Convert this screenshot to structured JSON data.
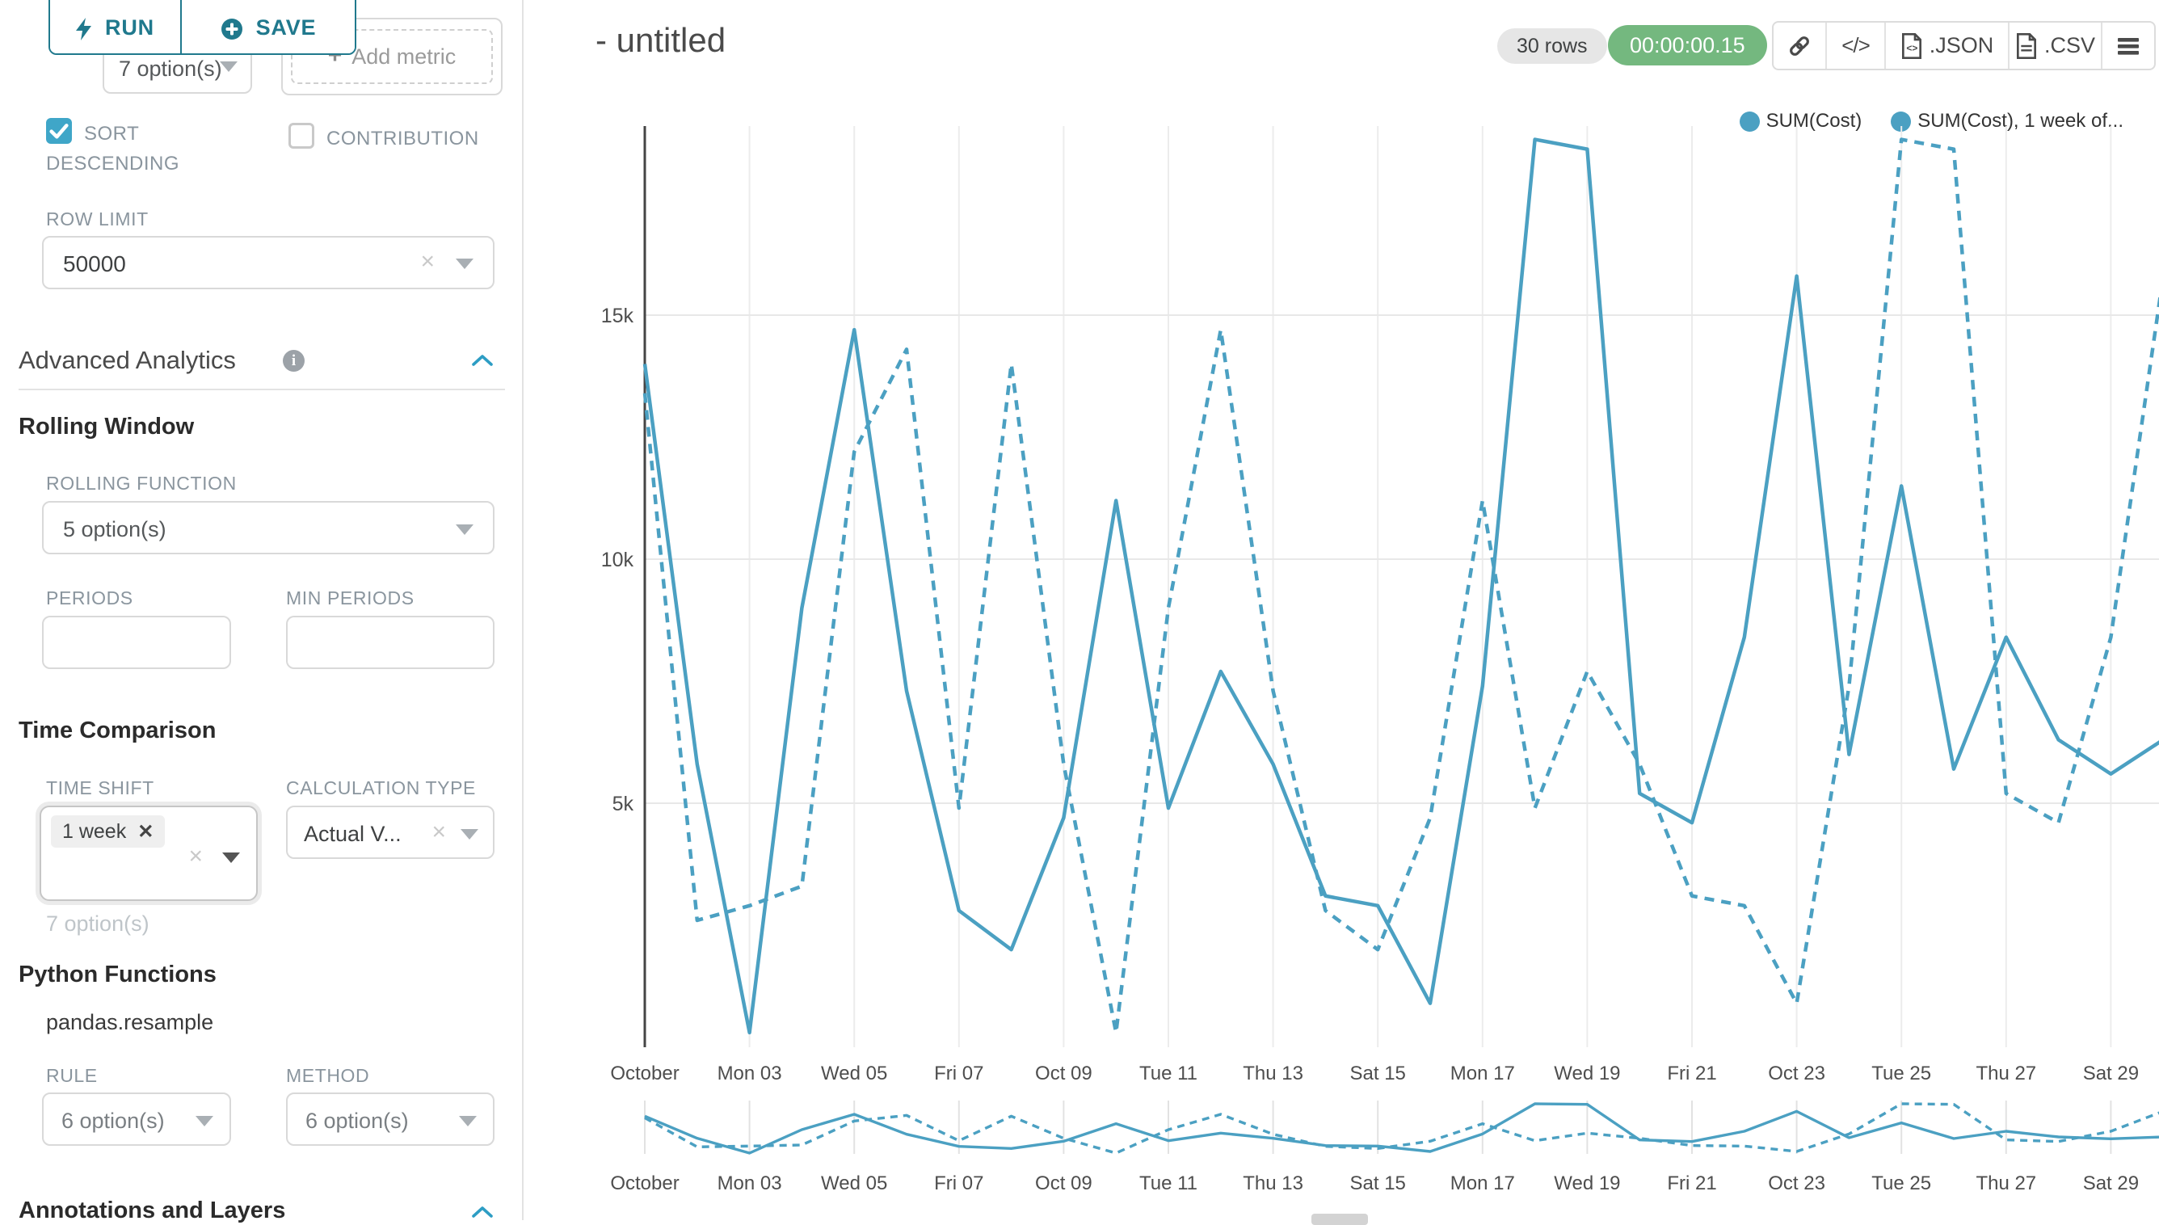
{
  "toolbar": {
    "run_label": "RUN",
    "save_label": "SAVE"
  },
  "query_controls": {
    "series_limit_value": "7 option(s)",
    "add_metric_label": "Add metric",
    "sort_word1": "SORT",
    "sort_word2": "DESCENDING",
    "contribution_label": "CONTRIBUTION",
    "row_limit_label": "ROW LIMIT",
    "row_limit_value": "50000"
  },
  "advanced_analytics": {
    "title": "Advanced Analytics",
    "rolling_window_title": "Rolling Window",
    "rolling_function_label": "ROLLING FUNCTION",
    "rolling_function_value": "5 option(s)",
    "periods_label": "PERIODS",
    "min_periods_label": "MIN PERIODS",
    "time_comparison_title": "Time Comparison",
    "time_shift_label": "TIME SHIFT",
    "time_shift_tag": "1 week",
    "time_shift_helper": "7 option(s)",
    "calculation_type_label": "CALCULATION TYPE",
    "calculation_type_value": "Actual V...",
    "python_functions_title": "Python Functions",
    "pandas_resample_label": "pandas.resample",
    "rule_label": "RULE",
    "rule_value": "6 option(s)",
    "method_label": "METHOD",
    "method_value": "6 option(s)",
    "annotations_title": "Annotations and Layers"
  },
  "header": {
    "title": "- untitled",
    "rows_badge": "30 rows",
    "timer": "00:00:00.15",
    "json_label": ".JSON",
    "csv_label": ".CSV",
    "code_glyph": "</>"
  },
  "legend": [
    {
      "label": "SUM(Cost)"
    },
    {
      "label": "SUM(Cost), 1 week of..."
    }
  ],
  "chart_data": {
    "type": "line",
    "title": "- untitled",
    "x": [
      "Oct 01",
      "Oct 02",
      "Oct 03",
      "Oct 04",
      "Oct 05",
      "Oct 06",
      "Oct 07",
      "Oct 08",
      "Oct 09",
      "Oct 10",
      "Oct 11",
      "Oct 12",
      "Oct 13",
      "Oct 14",
      "Oct 15",
      "Oct 16",
      "Oct 17",
      "Oct 18",
      "Oct 19",
      "Oct 20",
      "Oct 21",
      "Oct 22",
      "Oct 23",
      "Oct 24",
      "Oct 25",
      "Oct 26",
      "Oct 27",
      "Oct 28",
      "Oct 29",
      "Oct 30"
    ],
    "x_tick_labels": [
      "October",
      "Mon 03",
      "Wed 05",
      "Fri 07",
      "Oct 09",
      "Tue 11",
      "Thu 13",
      "Sat 15",
      "Mon 17",
      "Wed 19",
      "Fri 21",
      "Oct 23",
      "Tue 25",
      "Thu 27",
      "Sat 29"
    ],
    "y_ticks": [
      {
        "value": 5000,
        "label": "5k"
      },
      {
        "value": 10000,
        "label": "10k"
      },
      {
        "value": 15000,
        "label": "15k"
      }
    ],
    "ylim": [
      0,
      18900
    ],
    "grid": true,
    "legend_position": "top-right",
    "series": [
      {
        "name": "SUM(Cost)",
        "style": "solid",
        "values": [
          14000,
          5800,
          300,
          9000,
          14700,
          7300,
          2800,
          2000,
          4700,
          11200,
          4900,
          7700,
          5800,
          3100,
          2900,
          900,
          7400,
          18600,
          18400,
          5200,
          4600,
          8400,
          15800,
          6000,
          11500,
          5700,
          8400,
          6300,
          5600,
          6300
        ]
      },
      {
        "name": "SUM(Cost), 1 week offset",
        "style": "dashed",
        "values": [
          13400,
          2600,
          2900,
          3300,
          12200,
          14300,
          4900,
          14000,
          5800,
          300,
          9000,
          14700,
          7300,
          2800,
          2000,
          4700,
          11200,
          4900,
          7700,
          5800,
          3100,
          2900,
          900,
          7400,
          18600,
          18400,
          5200,
          4600,
          8400,
          15800
        ]
      }
    ],
    "line_color": "#4BA0C2"
  }
}
